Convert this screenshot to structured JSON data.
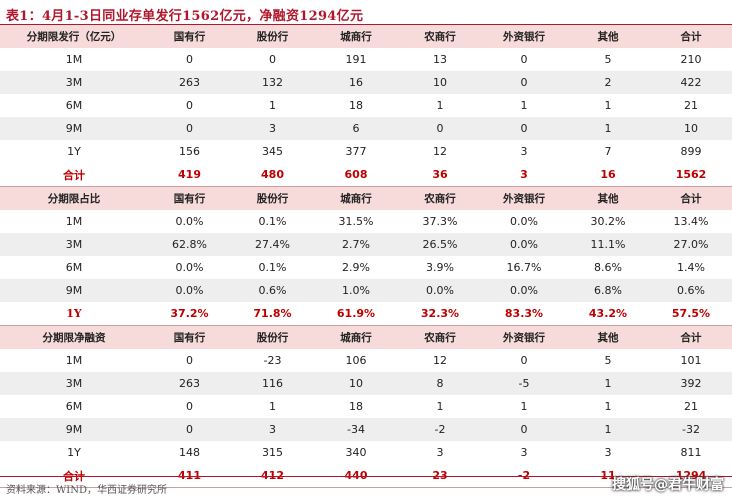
{
  "title": "表1：4月1-3日同业存单发行1562亿元，净融资1294亿元",
  "columns": [
    "国有行",
    "股份行",
    "城商行",
    "农商行",
    "外资银行",
    "其他",
    "合计"
  ],
  "sections": [
    {
      "header": "分期限发行（亿元）",
      "rows": [
        {
          "label": "1M",
          "values": [
            "0",
            "0",
            "191",
            "13",
            "0",
            "5",
            "210"
          ]
        },
        {
          "label": "3M",
          "values": [
            "263",
            "132",
            "16",
            "10",
            "0",
            "2",
            "422"
          ]
        },
        {
          "label": "6M",
          "values": [
            "0",
            "1",
            "18",
            "1",
            "1",
            "1",
            "21"
          ]
        },
        {
          "label": "9M",
          "values": [
            "0",
            "3",
            "6",
            "0",
            "0",
            "1",
            "10"
          ]
        },
        {
          "label": "1Y",
          "values": [
            "156",
            "345",
            "377",
            "12",
            "3",
            "7",
            "899"
          ]
        }
      ],
      "total": {
        "label": "合计",
        "values": [
          "419",
          "480",
          "608",
          "36",
          "3",
          "16",
          "1562"
        ]
      }
    },
    {
      "header": "分期限占比",
      "rows": [
        {
          "label": "1M",
          "values": [
            "0.0%",
            "0.1%",
            "31.5%",
            "37.3%",
            "0.0%",
            "30.2%",
            "13.4%"
          ]
        },
        {
          "label": "3M",
          "values": [
            "62.8%",
            "27.4%",
            "2.7%",
            "26.5%",
            "0.0%",
            "11.1%",
            "27.0%"
          ]
        },
        {
          "label": "6M",
          "values": [
            "0.0%",
            "0.1%",
            "2.9%",
            "3.9%",
            "16.7%",
            "8.6%",
            "1.4%"
          ]
        },
        {
          "label": "9M",
          "values": [
            "0.0%",
            "0.6%",
            "1.0%",
            "0.0%",
            "0.0%",
            "6.8%",
            "0.6%"
          ]
        }
      ],
      "total": {
        "label": "1Y",
        "values": [
          "37.2%",
          "71.8%",
          "61.9%",
          "32.3%",
          "83.3%",
          "43.2%",
          "57.5%"
        ]
      }
    },
    {
      "header": "分期限净融资",
      "rows": [
        {
          "label": "1M",
          "values": [
            "0",
            "-23",
            "106",
            "12",
            "0",
            "5",
            "101"
          ]
        },
        {
          "label": "3M",
          "values": [
            "263",
            "116",
            "10",
            "8",
            "-5",
            "1",
            "392"
          ]
        },
        {
          "label": "6M",
          "values": [
            "0",
            "1",
            "18",
            "1",
            "1",
            "1",
            "21"
          ]
        },
        {
          "label": "9M",
          "values": [
            "0",
            "3",
            "-34",
            "-2",
            "0",
            "1",
            "-32"
          ]
        },
        {
          "label": "1Y",
          "values": [
            "148",
            "315",
            "340",
            "3",
            "3",
            "3",
            "811"
          ]
        }
      ],
      "total": {
        "label": "合计",
        "values": [
          "411",
          "412",
          "440",
          "23",
          "-2",
          "11",
          "1294"
        ]
      }
    }
  ],
  "source": "资料来源：WIND，华西证券研究所",
  "watermark": "搜狐号@君牛财富"
}
